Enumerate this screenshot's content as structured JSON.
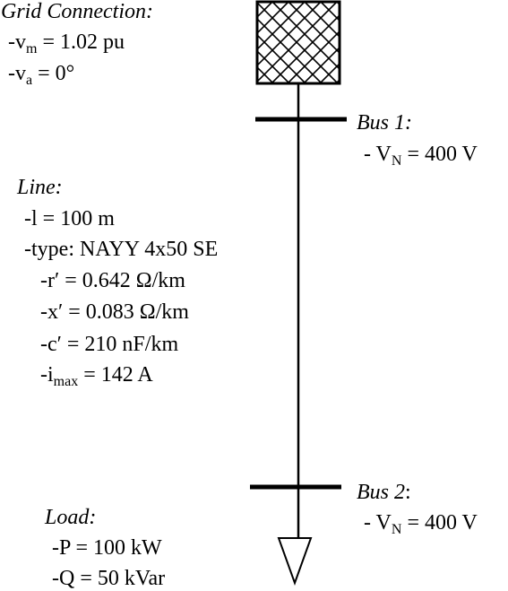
{
  "grid": {
    "title": "Grid Connection",
    "vm_prefix": "-v",
    "vm_sub": "m",
    "vm_rest": " =  1.02 pu",
    "va_prefix": "-v",
    "va_sub": "a",
    "va_rest": " = 0°"
  },
  "bus1": {
    "title": "Bus 1",
    "vn_prefix": "- V",
    "vn_sub": "N",
    "vn_rest": " = 400 V"
  },
  "line": {
    "title": "Line",
    "length": "-l = 100 m",
    "type": "-type:  NAYY 4x50 SE",
    "r": "-r′ = 0.642 Ω/km",
    "x": "-x′ = 0.083 Ω/km",
    "c": "-c′ = 210 nF/km",
    "imax_prefix": "-i",
    "imax_sub": "max",
    "imax_rest": " = 142 A"
  },
  "bus2": {
    "title": "Bus 2",
    "vn_prefix": "- V",
    "vn_sub": "N",
    "vn_rest": " = 400 V"
  },
  "load": {
    "title": "Load",
    "p": "-P = 100 kW",
    "q": "-Q = 50 kVar"
  }
}
